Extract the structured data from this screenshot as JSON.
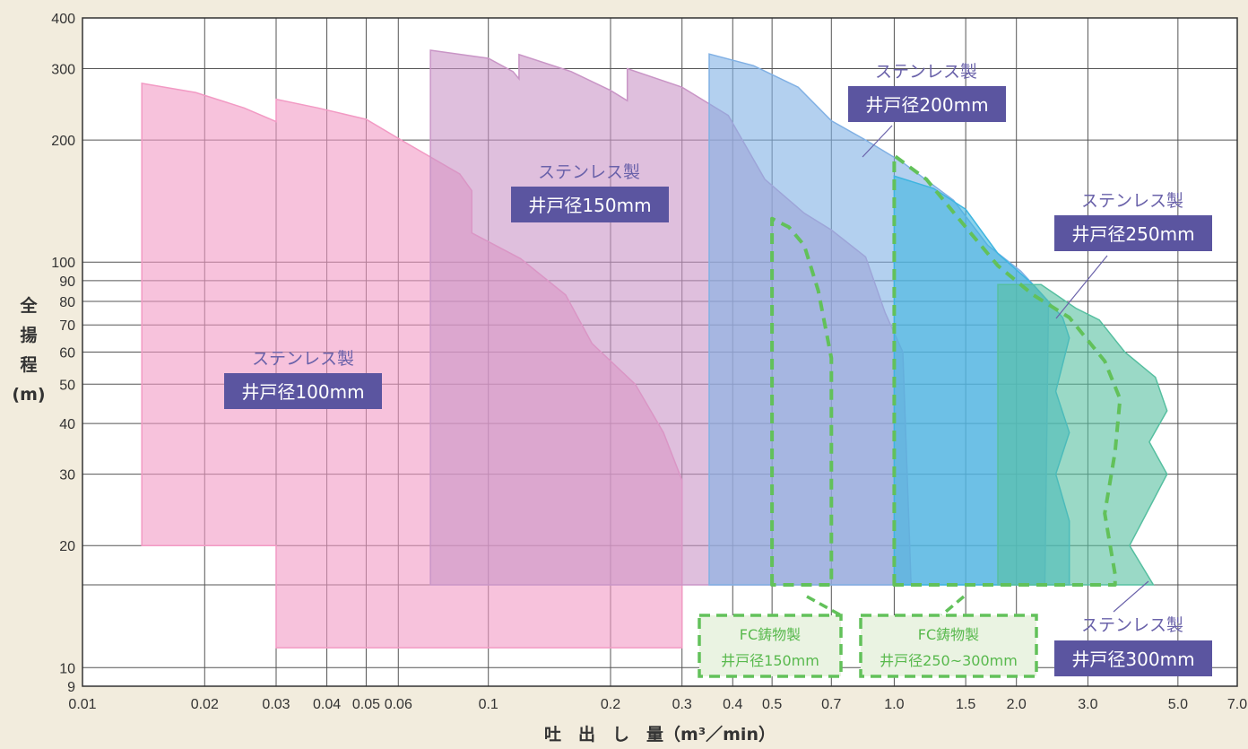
{
  "chart_data": {
    "type": "area",
    "xlabel": "吐　出　し　量（m³／min）",
    "ylabel": [
      "全",
      "揚",
      "程",
      "(m)"
    ],
    "x_scale": "log",
    "y_scale": "log",
    "xlim": [
      0.01,
      7.0
    ],
    "ylim": [
      9,
      400
    ],
    "x_ticks": [
      "0.01",
      "0.02",
      "0.03",
      "0.04",
      "0.05",
      "0.06",
      "0.1",
      "0.2",
      "0.3",
      "0.4",
      "0.5",
      "0.7",
      "1.0",
      "1.5",
      "2.0",
      "3.0",
      "5.0",
      "7.0"
    ],
    "y_ticks": [
      "9",
      "10",
      "20",
      "30",
      "40",
      "50",
      "60",
      "70",
      "80",
      "90",
      "100",
      "200",
      "300",
      "400"
    ],
    "grid": true,
    "series": [
      {
        "key": "s100",
        "title": "ステンレス製",
        "name": "井戸径100mm",
        "color": "#f29ac4",
        "points": [
          [
            0.014,
            20
          ],
          [
            0.014,
            276
          ],
          [
            0.019,
            262
          ],
          [
            0.025,
            240
          ],
          [
            0.03,
            222
          ],
          [
            0.03,
            252
          ],
          [
            0.038,
            240
          ],
          [
            0.05,
            225
          ],
          [
            0.061,
            200
          ],
          [
            0.085,
            165
          ],
          [
            0.091,
            150
          ],
          [
            0.091,
            118
          ],
          [
            0.12,
            102
          ],
          [
            0.155,
            83
          ],
          [
            0.18,
            63
          ],
          [
            0.23,
            50
          ],
          [
            0.27,
            38
          ],
          [
            0.3,
            29
          ],
          [
            0.3,
            11.2
          ],
          [
            0.03,
            11.2
          ],
          [
            0.03,
            20
          ]
        ]
      },
      {
        "key": "s150",
        "title": "ステンレス製",
        "name": "井戸径150mm",
        "color": "#c995c6",
        "points": [
          [
            0.072,
            16
          ],
          [
            0.072,
            333
          ],
          [
            0.1,
            318
          ],
          [
            0.115,
            295
          ],
          [
            0.119,
            283
          ],
          [
            0.119,
            325
          ],
          [
            0.16,
            295
          ],
          [
            0.2,
            265
          ],
          [
            0.22,
            250
          ],
          [
            0.22,
            300
          ],
          [
            0.3,
            270
          ],
          [
            0.39,
            230
          ],
          [
            0.48,
            160
          ],
          [
            0.6,
            132
          ],
          [
            0.7,
            120
          ],
          [
            0.85,
            103
          ],
          [
            0.95,
            75
          ],
          [
            1.05,
            60
          ],
          [
            1.1,
            16
          ]
        ]
      },
      {
        "key": "s200",
        "title": "ステンレス製",
        "name": "井戸径200mm",
        "color": "#80b0e4",
        "points": [
          [
            0.35,
            16
          ],
          [
            0.35,
            326
          ],
          [
            0.45,
            305
          ],
          [
            0.58,
            270
          ],
          [
            0.7,
            223
          ],
          [
            0.85,
            200
          ],
          [
            1.05,
            176
          ],
          [
            1.4,
            142
          ],
          [
            1.7,
            110
          ],
          [
            2.05,
            95
          ],
          [
            2.4,
            80
          ],
          [
            2.35,
            16
          ]
        ]
      },
      {
        "key": "s250",
        "title": "ステンレス製",
        "name": "井戸径250mm",
        "color": "#3eb5e0",
        "points": [
          [
            1.0,
            16
          ],
          [
            1.0,
            163
          ],
          [
            1.25,
            152
          ],
          [
            1.5,
            135
          ],
          [
            1.8,
            105
          ],
          [
            2.2,
            88
          ],
          [
            2.6,
            73
          ],
          [
            2.7,
            65
          ],
          [
            2.5,
            48
          ],
          [
            2.7,
            38
          ],
          [
            2.5,
            30
          ],
          [
            2.7,
            23
          ],
          [
            2.7,
            16
          ]
        ]
      },
      {
        "key": "s300",
        "title": "ステンレス製",
        "name": "井戸径300mm",
        "color": "#56bfa0",
        "points": [
          [
            1.8,
            16
          ],
          [
            1.8,
            88
          ],
          [
            2.3,
            88
          ],
          [
            2.8,
            77
          ],
          [
            3.2,
            72
          ],
          [
            3.7,
            60
          ],
          [
            4.4,
            52
          ],
          [
            4.7,
            43
          ],
          [
            4.25,
            36
          ],
          [
            4.7,
            30
          ],
          [
            3.8,
            20
          ],
          [
            4.35,
            16
          ]
        ]
      }
    ],
    "fc_regions": [
      {
        "key": "fc150",
        "title": "FC鋳物製",
        "name": "井戸径150mm",
        "color": "#62c15a",
        "points": [
          [
            0.5,
            16
          ],
          [
            0.5,
            128
          ],
          [
            0.55,
            122
          ],
          [
            0.6,
            110
          ],
          [
            0.65,
            85
          ],
          [
            0.7,
            58
          ],
          [
            0.7,
            16
          ]
        ]
      },
      {
        "key": "fc250",
        "title": "FC鋳物製",
        "name": "井戸径250~300mm",
        "color": "#62c15a",
        "points": [
          [
            1.0,
            16
          ],
          [
            1.0,
            183
          ],
          [
            1.2,
            160
          ],
          [
            1.5,
            122
          ],
          [
            1.8,
            98
          ],
          [
            2.2,
            83
          ],
          [
            2.7,
            73
          ],
          [
            3.3,
            57
          ],
          [
            3.6,
            46
          ],
          [
            3.5,
            34
          ],
          [
            3.3,
            24
          ],
          [
            3.5,
            17
          ],
          [
            3.5,
            16
          ]
        ]
      }
    ]
  }
}
